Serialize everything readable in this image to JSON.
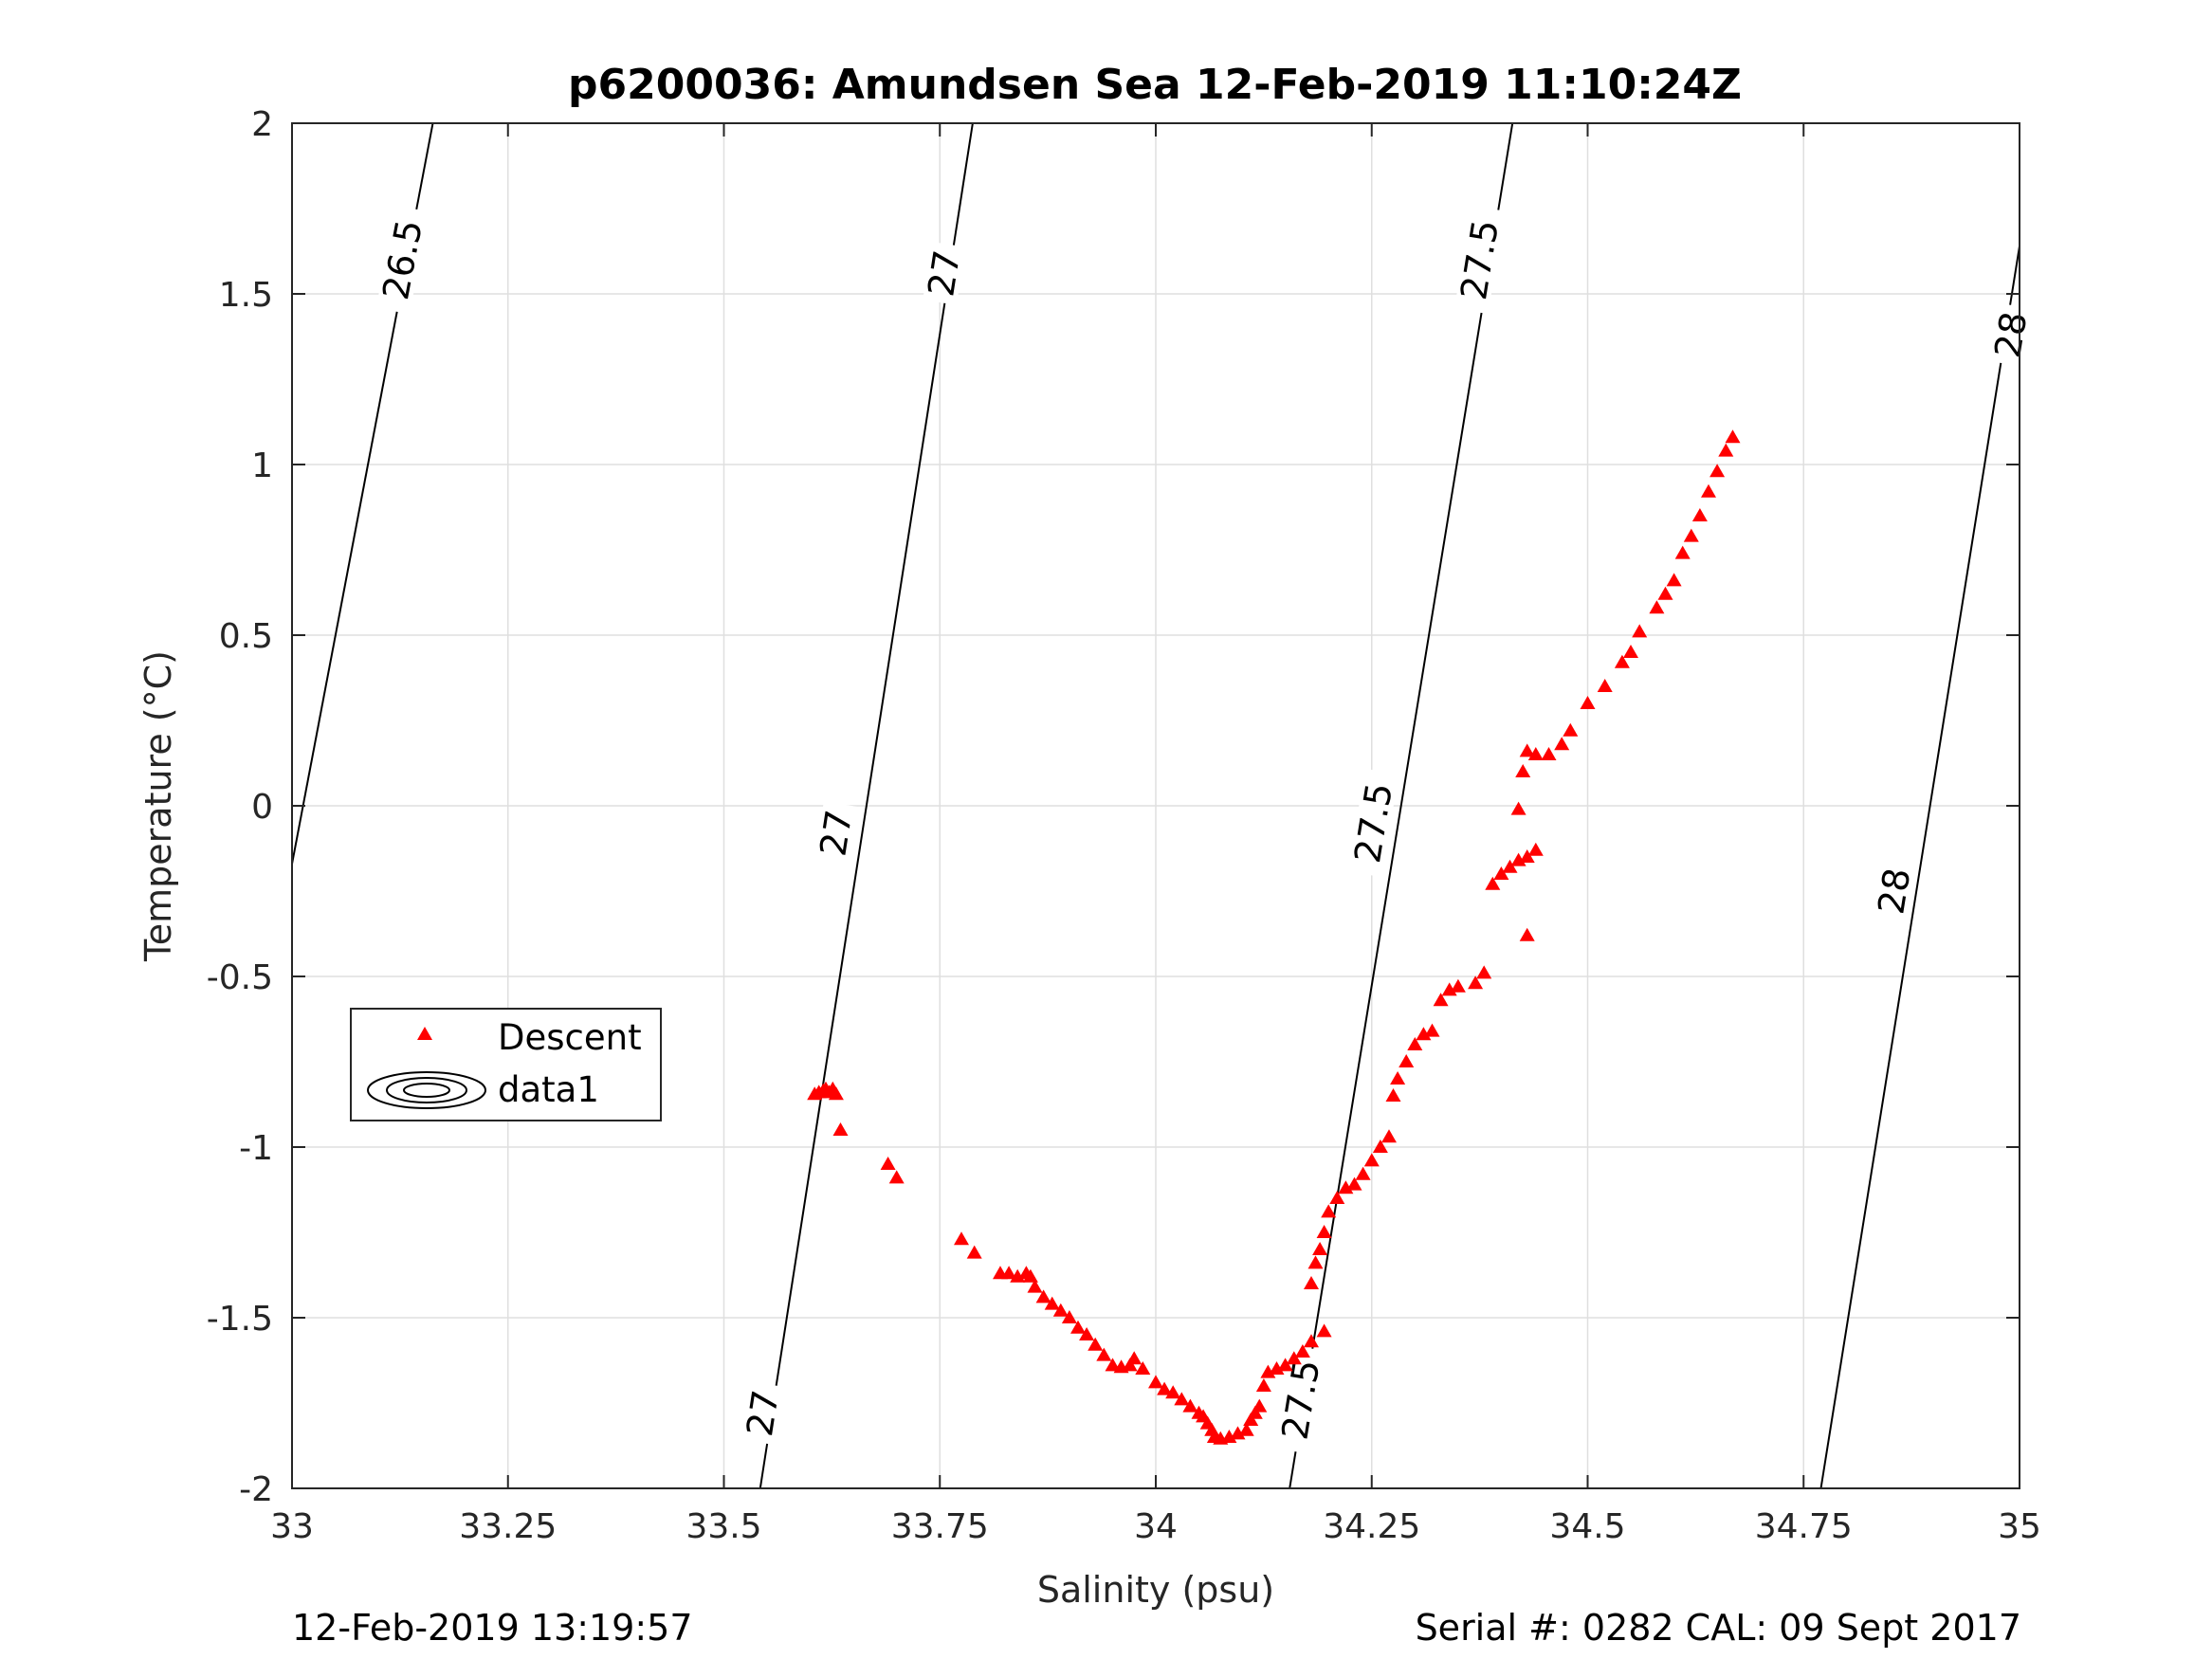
{
  "chart_data": {
    "type": "scatter",
    "title": "p6200036: Amundsen Sea 12-Feb-2019 11:10:24Z",
    "xlabel": "Salinity (psu)",
    "ylabel": "Temperature (°C)",
    "xlim": [
      33,
      35
    ],
    "ylim": [
      -2,
      2
    ],
    "xticks": [
      33,
      33.25,
      33.5,
      33.75,
      34,
      34.25,
      34.5,
      34.75,
      35
    ],
    "xtick_labels": [
      "33",
      "33.25",
      "33.5",
      "33.75",
      "34",
      "34.25",
      "34.5",
      "34.75",
      "35"
    ],
    "yticks": [
      -2,
      -1.5,
      -1,
      -0.5,
      0,
      0.5,
      1,
      1.5,
      2
    ],
    "ytick_labels": [
      "-2",
      "-1.5",
      "-1",
      "-0.5",
      "0",
      "0.5",
      "1",
      "1.5",
      "2"
    ],
    "grid": true,
    "legend_position": "left-middle",
    "legend": [
      "Descent",
      "data1"
    ],
    "series": [
      {
        "name": "Descent",
        "marker": "triangle",
        "color": "#ff0000",
        "points": [
          [
            33.605,
            -0.845
          ],
          [
            33.61,
            -0.84
          ],
          [
            33.615,
            -0.835
          ],
          [
            33.618,
            -0.83
          ],
          [
            33.622,
            -0.84
          ],
          [
            33.626,
            -0.83
          ],
          [
            33.63,
            -0.845
          ],
          [
            33.635,
            -0.95
          ],
          [
            33.69,
            -1.05
          ],
          [
            33.7,
            -1.09
          ],
          [
            33.775,
            -1.27
          ],
          [
            33.79,
            -1.31
          ],
          [
            33.82,
            -1.37
          ],
          [
            33.83,
            -1.37
          ],
          [
            33.84,
            -1.38
          ],
          [
            33.85,
            -1.37
          ],
          [
            33.855,
            -1.38
          ],
          [
            33.86,
            -1.41
          ],
          [
            33.87,
            -1.44
          ],
          [
            33.88,
            -1.46
          ],
          [
            33.89,
            -1.48
          ],
          [
            33.9,
            -1.5
          ],
          [
            33.91,
            -1.53
          ],
          [
            33.92,
            -1.55
          ],
          [
            33.93,
            -1.58
          ],
          [
            33.94,
            -1.61
          ],
          [
            33.95,
            -1.64
          ],
          [
            33.96,
            -1.645
          ],
          [
            33.97,
            -1.64
          ],
          [
            33.975,
            -1.62
          ],
          [
            33.985,
            -1.65
          ],
          [
            34.0,
            -1.69
          ],
          [
            34.01,
            -1.71
          ],
          [
            34.02,
            -1.72
          ],
          [
            34.03,
            -1.74
          ],
          [
            34.04,
            -1.76
          ],
          [
            34.05,
            -1.78
          ],
          [
            34.055,
            -1.79
          ],
          [
            34.06,
            -1.81
          ],
          [
            34.065,
            -1.83
          ],
          [
            34.068,
            -1.85
          ],
          [
            34.075,
            -1.855
          ],
          [
            34.085,
            -1.85
          ],
          [
            34.095,
            -1.84
          ],
          [
            34.105,
            -1.83
          ],
          [
            34.11,
            -1.8
          ],
          [
            34.115,
            -1.78
          ],
          [
            34.12,
            -1.76
          ],
          [
            34.125,
            -1.7
          ],
          [
            34.13,
            -1.66
          ],
          [
            34.14,
            -1.65
          ],
          [
            34.15,
            -1.64
          ],
          [
            34.16,
            -1.62
          ],
          [
            34.17,
            -1.6
          ],
          [
            34.18,
            -1.57
          ],
          [
            34.195,
            -1.54
          ],
          [
            34.18,
            -1.4
          ],
          [
            34.185,
            -1.34
          ],
          [
            34.19,
            -1.3
          ],
          [
            34.195,
            -1.25
          ],
          [
            34.2,
            -1.19
          ],
          [
            34.21,
            -1.15
          ],
          [
            34.22,
            -1.12
          ],
          [
            34.23,
            -1.11
          ],
          [
            34.24,
            -1.08
          ],
          [
            34.25,
            -1.04
          ],
          [
            34.26,
            -1.0
          ],
          [
            34.27,
            -0.97
          ],
          [
            34.275,
            -0.85
          ],
          [
            34.28,
            -0.8
          ],
          [
            34.29,
            -0.75
          ],
          [
            34.3,
            -0.7
          ],
          [
            34.31,
            -0.67
          ],
          [
            34.32,
            -0.66
          ],
          [
            34.33,
            -0.57
          ],
          [
            34.34,
            -0.54
          ],
          [
            34.35,
            -0.53
          ],
          [
            34.37,
            -0.52
          ],
          [
            34.38,
            -0.49
          ],
          [
            34.39,
            -0.23
          ],
          [
            34.4,
            -0.2
          ],
          [
            34.41,
            -0.18
          ],
          [
            34.42,
            -0.16
          ],
          [
            34.43,
            -0.15
          ],
          [
            34.44,
            -0.13
          ],
          [
            34.43,
            -0.38
          ],
          [
            34.42,
            -0.01
          ],
          [
            34.425,
            0.1
          ],
          [
            34.43,
            0.16
          ],
          [
            34.44,
            0.15
          ],
          [
            34.455,
            0.15
          ],
          [
            34.47,
            0.18
          ],
          [
            34.48,
            0.22
          ],
          [
            34.5,
            0.3
          ],
          [
            34.52,
            0.35
          ],
          [
            34.54,
            0.42
          ],
          [
            34.55,
            0.45
          ],
          [
            34.56,
            0.51
          ],
          [
            34.58,
            0.58
          ],
          [
            34.59,
            0.62
          ],
          [
            34.6,
            0.66
          ],
          [
            34.61,
            0.74
          ],
          [
            34.62,
            0.79
          ],
          [
            34.63,
            0.85
          ],
          [
            34.64,
            0.92
          ],
          [
            34.65,
            0.98
          ],
          [
            34.66,
            1.04
          ],
          [
            34.668,
            1.08
          ]
        ]
      }
    ],
    "contours": {
      "name": "data1",
      "levels": [
        {
          "value": 26.5,
          "label": "26.5",
          "lines": [
            [
              [
                33.0,
                -0.17
              ],
              [
                33.163,
                2.0
              ]
            ]
          ]
        },
        {
          "value": 27,
          "label": "27",
          "lines": [
            [
              [
                33.542,
                -2.0
              ],
              [
                33.788,
                2.0
              ]
            ]
          ]
        },
        {
          "value": 27.5,
          "label": "27.5",
          "lines": [
            [
              [
                34.155,
                -2.0
              ],
              [
                34.413,
                2.0
              ]
            ]
          ]
        },
        {
          "value": 28,
          "label": "28",
          "lines": [
            [
              [
                34.77,
                -2.0
              ],
              [
                35.0,
                1.64
              ]
            ]
          ]
        }
      ],
      "label_positions": [
        {
          "label": "26.5",
          "x": 33.128,
          "y": 1.6
        },
        {
          "label": "27",
          "x": 33.755,
          "y": 1.56
        },
        {
          "label": "27",
          "x": 33.63,
          "y": -0.08
        },
        {
          "label": "27",
          "x": 33.545,
          "y": -1.78
        },
        {
          "label": "27.5",
          "x": 34.375,
          "y": 1.6
        },
        {
          "label": "27.5",
          "x": 34.252,
          "y": -0.05
        },
        {
          "label": "27.5",
          "x": 34.168,
          "y": -1.74
        },
        {
          "label": "28",
          "x": 34.99,
          "y": 1.38
        },
        {
          "label": "28",
          "x": 34.855,
          "y": -0.25
        }
      ]
    }
  },
  "footer": {
    "left": "12-Feb-2019 13:19:57",
    "right": "Serial #: 0282  CAL: 09 Sept 2017"
  }
}
